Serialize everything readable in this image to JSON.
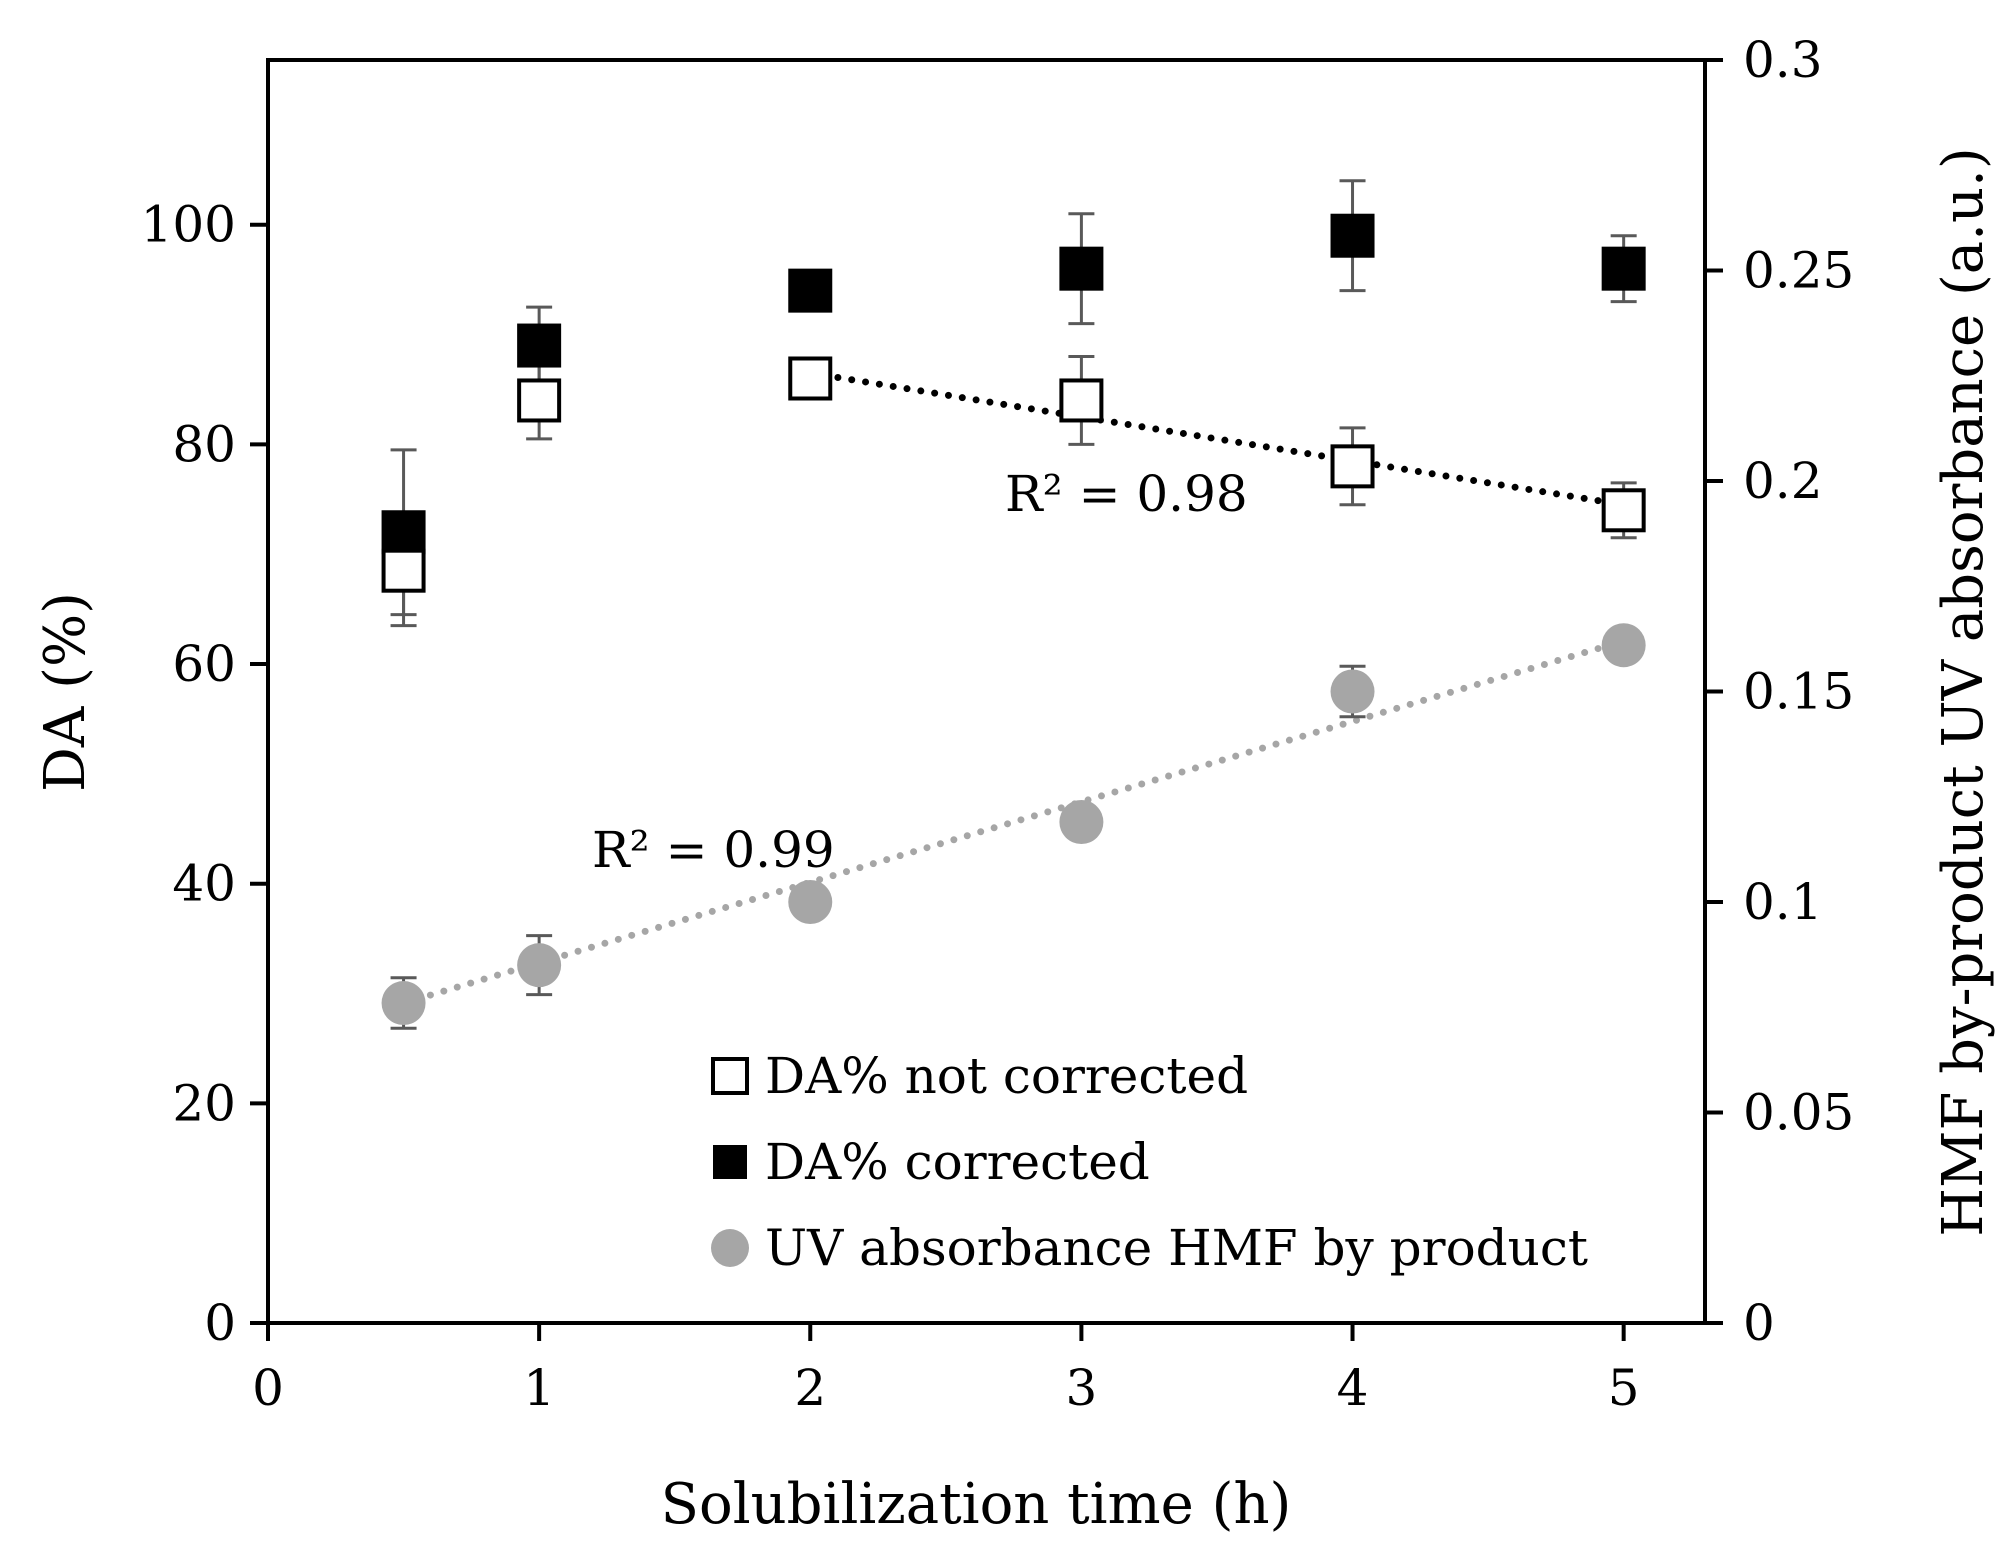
{
  "chart_data": {
    "type": "scatter",
    "xlabel": "Solubilization time (h)",
    "ylabel": "DA (%)",
    "y2label": "HMF by-product UV absorbance (a.u.)",
    "xlim": [
      0,
      5.3
    ],
    "ylim": [
      0,
      115
    ],
    "y2lim": [
      0,
      0.3
    ],
    "x_ticks": [
      0,
      1,
      2,
      3,
      4,
      5
    ],
    "y_ticks": [
      0,
      20,
      40,
      60,
      80,
      100
    ],
    "y2_ticks": [
      0,
      0.05,
      0.1,
      0.15,
      0.2,
      0.25,
      0.3
    ],
    "x_tick_labels": [
      "0",
      "1",
      "2",
      "3",
      "4",
      "5"
    ],
    "y_tick_labels": [
      "0",
      "20",
      "40",
      "60",
      "80",
      "100"
    ],
    "y2_tick_labels": [
      "0",
      "0.05",
      "0.1",
      "0.15",
      "0.2",
      "0.25",
      "0.3"
    ],
    "legend_position": "bottom-center",
    "grid": false,
    "series": [
      {
        "name": "DA% not corrected",
        "axis": "left",
        "marker": "open-square",
        "color": "#000000",
        "x": [
          0.5,
          1,
          2,
          3,
          4,
          5
        ],
        "y": [
          68.5,
          84,
          86,
          84,
          78,
          74
        ],
        "error": [
          5,
          3.5,
          0,
          4,
          3.5,
          2.5
        ]
      },
      {
        "name": "DA% corrected",
        "axis": "left",
        "marker": "filled-square",
        "color": "#000000",
        "x": [
          0.5,
          1,
          2,
          3,
          4,
          5
        ],
        "y": [
          72,
          89,
          94,
          96,
          99,
          96
        ],
        "error": [
          7.5,
          3.5,
          0,
          5,
          5,
          3
        ]
      },
      {
        "name": "UV absorbance HMF by product",
        "axis": "right",
        "marker": "circle",
        "color": "#a6a6a6",
        "x": [
          0.5,
          1,
          2,
          3,
          4,
          5
        ],
        "y": [
          0.076,
          0.085,
          0.1,
          0.119,
          0.15,
          0.161
        ],
        "error": [
          0.006,
          0.007,
          0,
          0,
          0.006,
          0
        ]
      }
    ],
    "trendlines": [
      {
        "series": "DA% not corrected",
        "axis": "left",
        "x": [
          2,
          5
        ],
        "y": [
          86.5,
          74.5
        ],
        "color": "#000000",
        "label": "R² = 0.98"
      },
      {
        "series": "UV absorbance HMF by product",
        "axis": "right",
        "x": [
          0.5,
          5
        ],
        "y": [
          0.076,
          0.162
        ],
        "color": "#a6a6a6",
        "label": "R² = 0.99"
      }
    ]
  }
}
